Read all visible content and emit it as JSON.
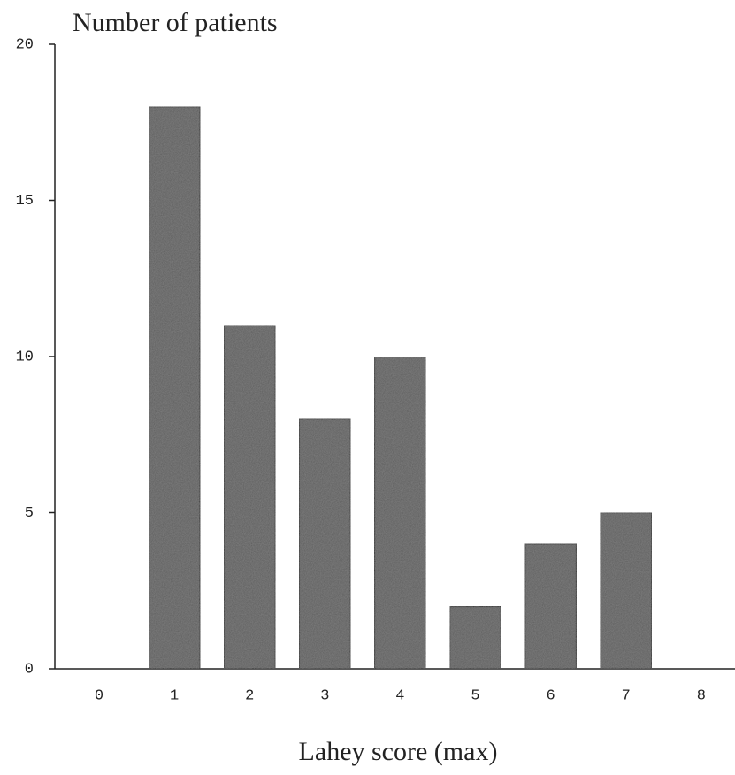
{
  "chart_data": {
    "type": "bar",
    "y_label": "Number of patients",
    "x_label": "Lahey score (max)",
    "categories": [
      "0",
      "1",
      "2",
      "3",
      "4",
      "5",
      "6",
      "7",
      "8"
    ],
    "values": [
      0,
      18,
      11,
      8,
      10,
      2,
      4,
      5,
      0
    ],
    "color": "#5c5c5c",
    "ylim": [
      0,
      20
    ],
    "yticks": [
      0,
      5,
      10,
      15,
      20
    ],
    "grid": false
  }
}
